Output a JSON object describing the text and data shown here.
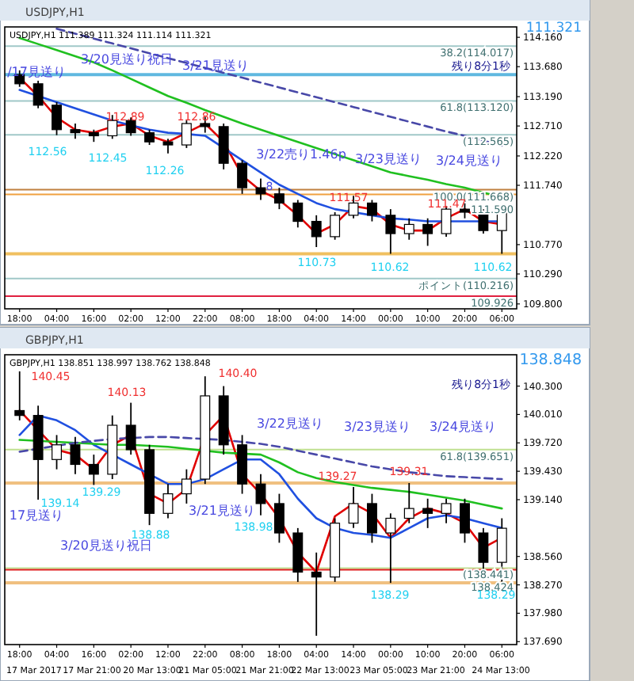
{
  "chart_data": [
    {
      "type": "candlestick",
      "title": "USDJPY,H1",
      "subtitle": "USDJPY,H1 111.389 111.324 111.114 111.321",
      "categories": [
        "18:00",
        null,
        "04:00",
        null,
        "16:00",
        null,
        "02:00",
        null,
        "12:00",
        null,
        "22:00",
        null,
        "08:00",
        null,
        "18:00",
        null,
        "04:00",
        null,
        "14:00",
        null,
        "00:00",
        null,
        "10:00",
        null,
        "20:00",
        null,
        "06:00"
      ],
      "ohlc": [
        [
          113.55,
          113.62,
          113.35,
          113.4
        ],
        [
          113.4,
          113.45,
          113.0,
          113.05
        ],
        [
          113.05,
          113.1,
          112.56,
          112.65
        ],
        [
          112.65,
          112.75,
          112.5,
          112.6
        ],
        [
          112.6,
          112.65,
          112.45,
          112.55
        ],
        [
          112.55,
          112.89,
          112.5,
          112.8
        ],
        [
          112.8,
          112.85,
          112.55,
          112.6
        ],
        [
          112.6,
          112.65,
          112.4,
          112.45
        ],
        [
          112.45,
          112.5,
          112.26,
          112.4
        ],
        [
          112.4,
          112.8,
          112.35,
          112.75
        ],
        [
          112.75,
          112.86,
          112.6,
          112.7
        ],
        [
          112.7,
          112.75,
          112.0,
          112.1
        ],
        [
          112.1,
          112.15,
          111.6,
          111.7
        ],
        [
          111.7,
          111.85,
          111.5,
          111.6
        ],
        [
          111.6,
          111.7,
          111.35,
          111.45
        ],
        [
          111.45,
          111.5,
          111.05,
          111.15
        ],
        [
          111.15,
          111.25,
          110.73,
          110.9
        ],
        [
          110.9,
          111.3,
          110.85,
          111.25
        ],
        [
          111.25,
          111.57,
          111.2,
          111.45
        ],
        [
          111.45,
          111.5,
          111.15,
          111.25
        ],
        [
          111.25,
          111.35,
          110.62,
          110.95
        ],
        [
          110.95,
          111.2,
          110.85,
          111.1
        ],
        [
          111.1,
          111.2,
          110.75,
          110.95
        ],
        [
          110.95,
          111.4,
          110.9,
          111.35
        ],
        [
          111.35,
          111.47,
          111.2,
          111.3
        ],
        [
          111.3,
          111.35,
          110.95,
          111.0
        ],
        [
          111.0,
          111.35,
          110.62,
          111.321
        ]
      ],
      "series": [
        {
          "type": "line",
          "color": "#e00000",
          "values": [
            113.5,
            113.2,
            112.85,
            112.65,
            112.6,
            112.7,
            112.75,
            112.55,
            112.45,
            112.6,
            112.75,
            112.45,
            111.9,
            111.65,
            111.5,
            111.25,
            110.95,
            111.1,
            111.4,
            111.35,
            111.1,
            111.0,
            111.0,
            111.2,
            111.35,
            111.15,
            111.1
          ]
        },
        {
          "type": "line",
          "color": "#2050e0",
          "values": [
            113.3,
            113.2,
            113.1,
            113.0,
            112.9,
            112.8,
            112.72,
            112.65,
            112.6,
            112.58,
            112.55,
            112.35,
            112.15,
            111.95,
            111.75,
            111.6,
            111.45,
            111.35,
            111.3,
            111.25,
            111.2,
            111.18,
            111.15,
            111.15,
            111.15,
            111.15,
            111.15
          ]
        },
        {
          "type": "line",
          "color": "#20c020",
          "values": [
            114.15,
            114.05,
            113.95,
            113.85,
            113.75,
            113.62,
            113.48,
            113.34,
            113.2,
            113.09,
            112.97,
            112.86,
            112.75,
            112.65,
            112.55,
            112.45,
            112.35,
            112.25,
            112.15,
            112.05,
            111.95,
            111.89,
            111.83,
            111.76,
            111.7,
            111.62,
            111.55
          ]
        },
        {
          "type": "line",
          "color": "#4848a8",
          "line_style": "dashed",
          "values": [
            null,
            null,
            114.3,
            114.22,
            114.14,
            114.06,
            113.98,
            113.9,
            113.82,
            113.74,
            113.66,
            113.58,
            113.5,
            113.42,
            113.34,
            113.26,
            113.18,
            113.1,
            113.02,
            112.94,
            112.86,
            112.78,
            112.7,
            112.62,
            112.55,
            112.47,
            112.39
          ]
        }
      ],
      "ylim": [
        109.72,
        114.33
      ],
      "yticks": [
        {
          "value": 114.16,
          "label": "114.160"
        },
        {
          "value": 113.68,
          "label": "113.680"
        },
        {
          "value": 113.19,
          "label": "113.190"
        },
        {
          "value": 112.71,
          "label": "112.710"
        },
        {
          "value": 112.22,
          "label": "112.220"
        },
        {
          "value": 111.74,
          "label": "111.740"
        },
        {
          "value": 110.77,
          "label": "110.770"
        },
        {
          "value": 110.29,
          "label": "110.290"
        },
        {
          "value": 109.8,
          "label": "109.800"
        }
      ],
      "ref_lines": [
        {
          "axis": "y",
          "value": 114.017,
          "label": "38.2(114.017)",
          "color": "#a0c8c8"
        },
        {
          "axis": "y",
          "value": 113.549,
          "color": "#60b8e0"
        },
        {
          "axis": "y",
          "value": 113.12,
          "label": "61.8(113.120)",
          "color": "#a0c8c8"
        },
        {
          "axis": "y",
          "value": 112.565,
          "label": "(112.565)",
          "color": "#a0c8c8"
        },
        {
          "axis": "y",
          "value": 111.668,
          "label": "100.0(111.668)",
          "color": "#c08040"
        },
        {
          "axis": "y",
          "value": 111.59,
          "label": "111.590",
          "color": "#f0a040"
        },
        {
          "axis": "y",
          "value": 110.62,
          "color": "#f0c060"
        },
        {
          "axis": "y",
          "value": 110.216,
          "label": "ポイント(110.216)",
          "color": "#a0c8c8"
        },
        {
          "axis": "y",
          "value": 109.926,
          "label": "109.926",
          "color": "#e02040"
        }
      ],
      "annotations": [
        "111.321",
        "残り8分1秒",
        "/17見送り",
        "3/20見送り祝日",
        "3/21見送り",
        "3/22売り1.46p",
        "3/23見送り",
        "3/24見送り",
        "112.56",
        "112.89",
        "112.45",
        "112.86",
        "112.26",
        "111.57",
        "110.73",
        "110.62",
        "111.47",
        "110.62",
        "8"
      ]
    },
    {
      "type": "candlestick",
      "title": "GBPJPY,H1",
      "subtitle": "GBPJPY,H1 138.851 138.997 138.762 138.848",
      "categories": [
        "18:00",
        null,
        "04:00",
        null,
        "16:00",
        null,
        "02:00",
        null,
        "12:00",
        null,
        "22:00",
        null,
        "08:00",
        null,
        "18:00",
        null,
        "04:00",
        null,
        "14:00",
        null,
        "00:00",
        null,
        "10:00",
        null,
        "20:00",
        null,
        "06:00"
      ],
      "ohlc": [
        [
          140.05,
          140.45,
          139.95,
          140.0
        ],
        [
          140.0,
          140.1,
          139.14,
          139.55
        ],
        [
          139.55,
          139.8,
          139.45,
          139.7
        ],
        [
          139.7,
          139.78,
          139.4,
          139.5
        ],
        [
          139.5,
          139.6,
          139.29,
          139.4
        ],
        [
          139.4,
          140.0,
          139.35,
          139.9
        ],
        [
          139.9,
          140.13,
          139.6,
          139.65
        ],
        [
          139.65,
          139.7,
          138.88,
          139.0
        ],
        [
          139.0,
          139.3,
          138.95,
          139.2
        ],
        [
          139.2,
          139.45,
          139.1,
          139.35
        ],
        [
          139.35,
          140.4,
          139.3,
          140.2
        ],
        [
          140.2,
          140.3,
          139.6,
          139.7
        ],
        [
          139.7,
          139.8,
          139.2,
          139.3
        ],
        [
          139.3,
          139.4,
          138.98,
          139.1
        ],
        [
          139.1,
          139.2,
          138.7,
          138.8
        ],
        [
          138.8,
          138.85,
          138.3,
          138.4
        ],
        [
          138.4,
          138.6,
          137.75,
          138.35
        ],
        [
          138.35,
          138.95,
          138.3,
          138.9
        ],
        [
          138.9,
          139.27,
          138.85,
          139.1
        ],
        [
          139.1,
          139.2,
          138.7,
          138.8
        ],
        [
          138.8,
          139.0,
          138.29,
          138.95
        ],
        [
          138.95,
          139.31,
          138.9,
          139.05
        ],
        [
          139.05,
          139.15,
          138.85,
          139.0
        ],
        [
          139.0,
          139.15,
          138.9,
          139.1
        ],
        [
          139.1,
          139.15,
          138.7,
          138.8
        ],
        [
          138.8,
          138.85,
          138.4,
          138.5
        ],
        [
          138.5,
          138.95,
          138.29,
          138.848
        ]
      ],
      "series": [
        {
          "type": "line",
          "color": "#e00000",
          "values": [
            140.05,
            139.85,
            139.65,
            139.6,
            139.45,
            139.7,
            139.8,
            139.2,
            139.1,
            139.25,
            139.8,
            140.0,
            139.4,
            139.2,
            138.95,
            138.6,
            138.4,
            138.97,
            139.1,
            139.0,
            138.75,
            138.95,
            139.05,
            139.0,
            138.9,
            138.65,
            138.75
          ]
        },
        {
          "type": "line",
          "color": "#2050e0",
          "values": [
            139.8,
            140.0,
            139.95,
            139.85,
            139.7,
            139.6,
            139.5,
            139.4,
            139.3,
            139.3,
            139.35,
            139.45,
            139.55,
            139.55,
            139.4,
            139.15,
            138.95,
            138.85,
            138.8,
            138.78,
            138.75,
            138.85,
            138.95,
            138.98,
            138.95,
            138.9,
            138.85
          ]
        },
        {
          "type": "line",
          "color": "#20c020",
          "values": [
            139.75,
            139.74,
            139.73,
            139.72,
            139.71,
            139.7,
            139.7,
            139.69,
            139.68,
            139.66,
            139.64,
            139.62,
            139.61,
            139.6,
            139.52,
            139.42,
            139.36,
            139.32,
            139.29,
            139.26,
            139.24,
            139.22,
            139.19,
            139.16,
            139.13,
            139.09,
            139.05
          ]
        },
        {
          "type": "line",
          "color": "#4848a8",
          "line_style": "dashed",
          "values": [
            139.63,
            139.66,
            139.69,
            139.72,
            139.74,
            139.76,
            139.77,
            139.78,
            139.78,
            139.77,
            139.76,
            139.75,
            139.73,
            139.71,
            139.68,
            139.64,
            139.6,
            139.56,
            139.52,
            139.48,
            139.45,
            139.42,
            139.4,
            139.38,
            139.37,
            139.36,
            139.35
          ]
        }
      ],
      "ylim": [
        137.66,
        140.62
      ],
      "yticks": [
        {
          "value": 140.3,
          "label": "140.300"
        },
        {
          "value": 140.01,
          "label": "140.010"
        },
        {
          "value": 139.72,
          "label": "139.720"
        },
        {
          "value": 139.43,
          "label": "139.430"
        },
        {
          "value": 139.14,
          "label": "139.140"
        },
        {
          "value": 138.56,
          "label": "138.560"
        },
        {
          "value": 138.27,
          "label": "138.270"
        },
        {
          "value": 137.98,
          "label": "137.980"
        },
        {
          "value": 137.69,
          "label": "137.690"
        }
      ],
      "ref_lines": [
        {
          "axis": "y",
          "value": 139.651,
          "label": "61.8(139.651)",
          "color": "#c0e090"
        },
        {
          "axis": "y",
          "value": 139.31,
          "color": "#f0c080"
        },
        {
          "axis": "y",
          "value": 138.441,
          "label": "(138.441)",
          "color": "#c0e090"
        },
        {
          "axis": "y",
          "value": 138.424,
          "label": "138.424",
          "color": "#e02020"
        },
        {
          "axis": "y",
          "value": 138.29,
          "color": "#f0c080"
        }
      ],
      "annotations": [
        "138.848",
        "残り8分1秒",
        "17 Mar 2017",
        "17 Mar 21:00",
        "20 Mar 13:00",
        "21 Mar 05:00",
        "21 Mar 21:00",
        "22 Mar 13:00",
        "23 Mar 05:00",
        "23 Mar 21:00",
        "24 Mar 13:00",
        "17見送り",
        "3/20見送り祝日",
        "3/21見送り",
        "3/22見送り",
        "3/23見送り",
        "3/24見送り",
        "140.45",
        "140.13",
        "140.40",
        "139.14",
        "139.29",
        "138.88",
        "138.98",
        "139.27",
        "139.31",
        "138.29",
        "138.29"
      ]
    }
  ]
}
